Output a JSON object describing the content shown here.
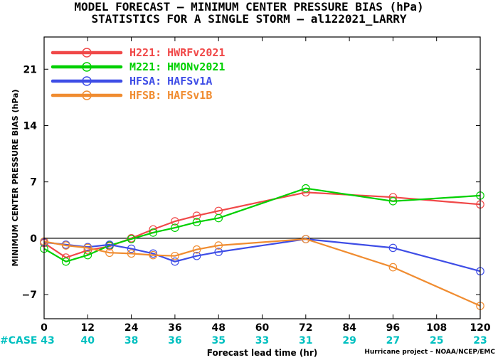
{
  "title_line1": "MODEL FORECAST – MINIMUM CENTER PRESSURE BIAS (hPa)",
  "title_line2": "STATISTICS FOR A SINGLE STORM – al122021_LARRY",
  "credit": "Hurricane project – NOAA/NCEP/EMC",
  "case_label": "#CASE",
  "case_counts": [
    "43",
    "40",
    "38",
    "36",
    "35",
    "33",
    "31",
    "29",
    "27",
    "25",
    "23"
  ],
  "colors": {
    "case_label": "#00c0c0",
    "zero_line": "#000000"
  },
  "chart_data": {
    "type": "line",
    "xlabel": "Forecast lead time (hr)",
    "ylabel": "MINIMUM CENTER PRESSURE BIAS (hPa)",
    "xlim": [
      0,
      120
    ],
    "ylim": [
      -10,
      25
    ],
    "xticks": [
      0,
      12,
      24,
      36,
      48,
      60,
      72,
      84,
      96,
      108,
      120
    ],
    "yticks": [
      -7,
      0,
      7,
      14,
      21
    ],
    "legend_position": "top-left",
    "series": [
      {
        "id": "H221",
        "label_code": "H221:",
        "label_name": "HWRFv2021",
        "color": "#f04848",
        "x": [
          0,
          6,
          12,
          18,
          24,
          30,
          36,
          42,
          48,
          72,
          96,
          120
        ],
        "y": [
          -0.6,
          -2.4,
          -1.5,
          -1.0,
          0.0,
          1.1,
          2.1,
          2.8,
          3.4,
          5.7,
          5.1,
          4.2
        ]
      },
      {
        "id": "M221",
        "label_code": "M221:",
        "label_name": "HMONv2021",
        "color": "#00d000",
        "x": [
          0,
          6,
          12,
          18,
          24,
          30,
          36,
          42,
          48,
          72,
          96,
          120
        ],
        "y": [
          -1.3,
          -2.9,
          -2.1,
          -0.9,
          -0.1,
          0.7,
          1.3,
          2.0,
          2.5,
          6.2,
          4.6,
          5.3
        ]
      },
      {
        "id": "HFSA",
        "label_code": "HFSA:",
        "label_name": "HAFSv1A",
        "color": "#3e4de6",
        "x": [
          0,
          6,
          12,
          18,
          24,
          30,
          36,
          42,
          48,
          72,
          96,
          120
        ],
        "y": [
          -0.5,
          -0.8,
          -1.1,
          -0.8,
          -1.3,
          -1.9,
          -2.9,
          -2.2,
          -1.7,
          -0.1,
          -1.2,
          -4.1
        ]
      },
      {
        "id": "HFSB",
        "label_code": "HFSB:",
        "label_name": "HAFSv1B",
        "color": "#f08c30",
        "x": [
          0,
          6,
          12,
          18,
          24,
          30,
          36,
          42,
          48,
          72,
          96,
          120
        ],
        "y": [
          -0.4,
          -0.9,
          -1.2,
          -1.8,
          -1.9,
          -2.1,
          -2.2,
          -1.4,
          -0.9,
          -0.1,
          -3.6,
          -8.4
        ]
      }
    ]
  }
}
